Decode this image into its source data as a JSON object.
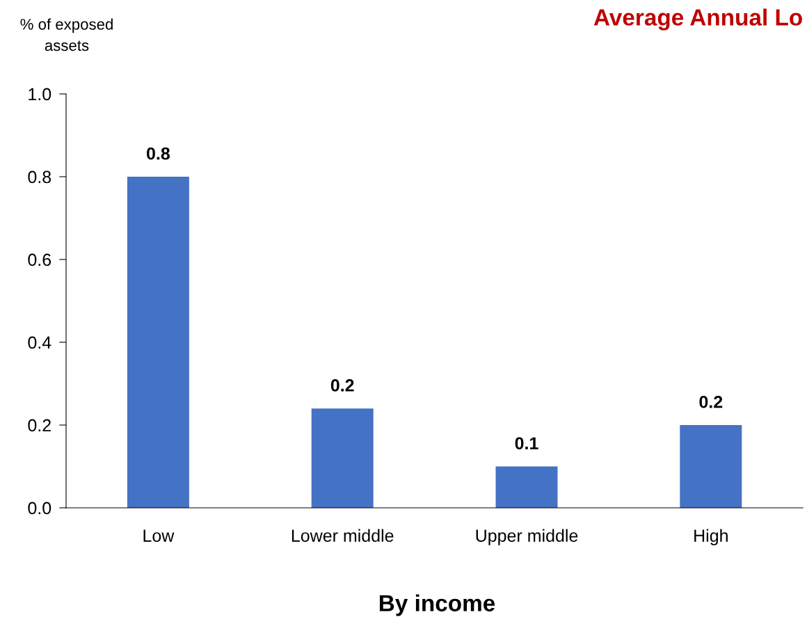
{
  "chart_data": {
    "type": "bar",
    "title": "Average Annual Lo",
    "ylabel": "% of exposed\nassets",
    "xlabel": "By income",
    "categories": [
      "Low",
      "Lower middle",
      "Upper middle",
      "High"
    ],
    "values": [
      0.8,
      0.24,
      0.1,
      0.2
    ],
    "value_labels": [
      "0.8",
      "0.2",
      "0.1",
      "0.2"
    ],
    "color": "#4472c4",
    "ylim": [
      0,
      1.0
    ],
    "yticks": [
      {
        "value": 0,
        "label": "0.0"
      },
      {
        "value": 0.2,
        "label": "0.2"
      },
      {
        "value": 0.4,
        "label": "0.4"
      },
      {
        "value": 0.6,
        "label": "0.6"
      },
      {
        "value": 0.8,
        "label": "0.8"
      },
      {
        "value": 1.0,
        "label": "1.0"
      }
    ],
    "grid": false,
    "legend": false
  }
}
